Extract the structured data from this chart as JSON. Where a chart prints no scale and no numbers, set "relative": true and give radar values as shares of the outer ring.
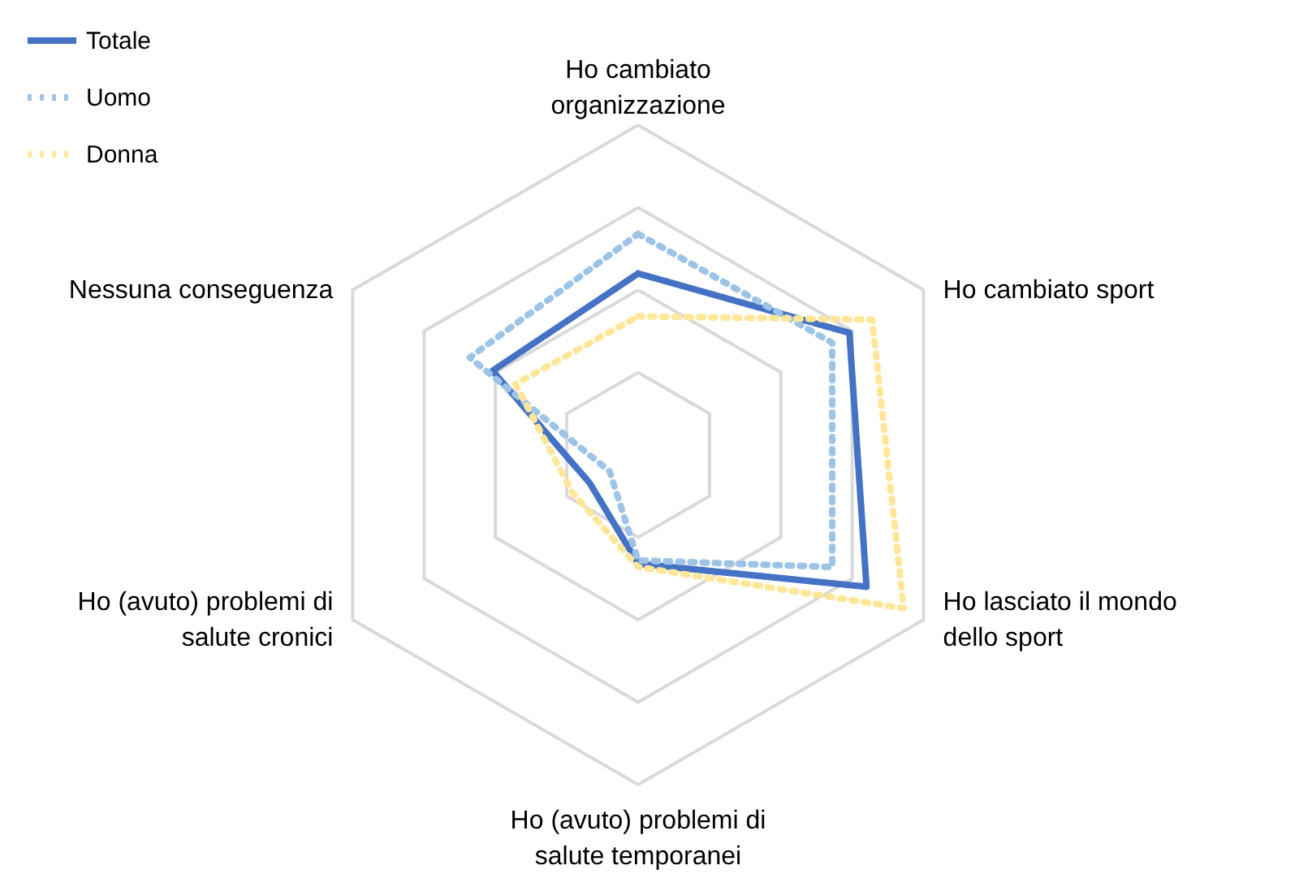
{
  "chart_data": {
    "type": "radar",
    "relative": true,
    "grid": true,
    "legend": "top left",
    "marker": "none",
    "categories": [
      "Ho cambiato organizzazione",
      "Ho cambiato sport",
      "Ho lasciato il mondo dello sport",
      "Ho (avuto) problemi di salute temporanei",
      "Ho (avuto) problemi di salute cronici",
      "Nessuna conseguenza"
    ],
    "series": [
      {
        "name": "Totale",
        "color": "#4472c4",
        "line_style": "solid",
        "values": [
          0.55,
          0.74,
          0.8,
          0.33,
          0.17,
          0.51
        ]
      },
      {
        "name": "Uomo",
        "color": "#9dc3e6",
        "line_style": "dotted",
        "values": [
          0.67,
          0.68,
          0.68,
          0.32,
          0.1,
          0.59
        ]
      },
      {
        "name": "Donna",
        "color": "#ffe699",
        "line_style": "dotted",
        "values": [
          0.42,
          0.82,
          0.93,
          0.34,
          0.23,
          0.43
        ]
      }
    ]
  }
}
